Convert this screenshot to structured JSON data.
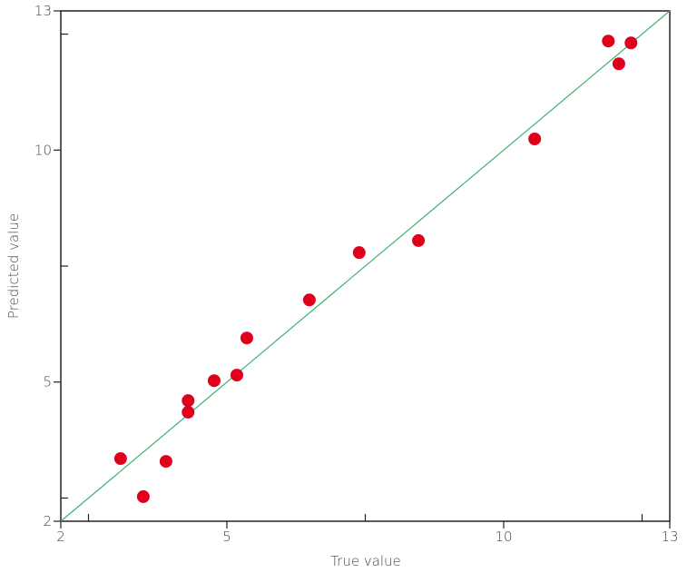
{
  "chart_data": {
    "type": "scatter",
    "x_label": "True value",
    "y_label": "Predicted value",
    "xlim": [
      2,
      13
    ],
    "ylim": [
      2,
      13
    ],
    "xticks": [
      2,
      5,
      10,
      13
    ],
    "yticks": [
      2,
      5,
      10,
      13
    ],
    "minor_xticks": [
      2.5,
      7.5,
      12.5
    ],
    "minor_yticks": [
      2.5,
      7.5,
      12.5
    ],
    "series": [
      {
        "color": "#e0001b",
        "x": [
          3.08,
          3.49,
          3.9,
          4.3,
          4.3,
          4.77,
          5.18,
          5.36,
          6.49,
          7.39,
          8.46,
          10.56,
          11.89,
          12.08,
          12.3
        ],
        "values": [
          3.35,
          2.53,
          3.29,
          4.6,
          4.35,
          5.03,
          5.15,
          5.95,
          6.77,
          7.79,
          8.05,
          10.24,
          12.35,
          11.86,
          12.31
        ]
      }
    ],
    "reference_line": {
      "color": "#3cb371",
      "x": [
        2,
        13
      ],
      "values": [
        2,
        13
      ]
    }
  }
}
